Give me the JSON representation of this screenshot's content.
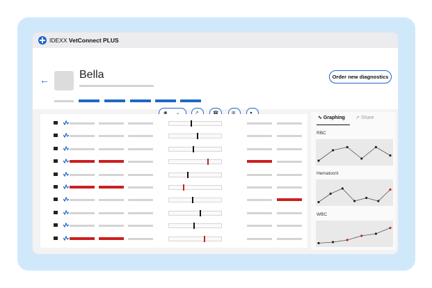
{
  "app": {
    "brand": "IDEXX",
    "product": "VetConnect PLUS"
  },
  "patient": {
    "name": "Bella"
  },
  "header": {
    "order_label": "Order new diagnostics"
  },
  "sidebar": {
    "tabs": [
      {
        "label": "Graphing"
      },
      {
        "label": "Share"
      }
    ]
  },
  "charts_label": [
    "RBC",
    "Hematocrit",
    "WBC"
  ],
  "rows": [
    {
      "flag": [
        false,
        false,
        false
      ],
      "marker": 0.42,
      "marker_red": false,
      "flag2": false
    },
    {
      "flag": [
        false,
        false,
        false
      ],
      "marker": 0.55,
      "marker_red": false,
      "flag2": false
    },
    {
      "flag": [
        false,
        false,
        false
      ],
      "marker": 0.46,
      "marker_red": false,
      "flag2": false
    },
    {
      "flag": [
        true,
        true,
        false
      ],
      "marker": 0.76,
      "marker_red": true,
      "flag2": true
    },
    {
      "flag": [
        false,
        false,
        false
      ],
      "marker": 0.36,
      "marker_red": false,
      "flag2": false
    },
    {
      "flag": [
        true,
        true,
        false
      ],
      "marker": 0.28,
      "marker_red": true,
      "flag2": false
    },
    {
      "flag": [
        false,
        false,
        false
      ],
      "marker": 0.45,
      "marker_red": false,
      "flag2": true
    },
    {
      "flag": [
        false,
        false,
        false
      ],
      "marker": 0.6,
      "marker_red": false,
      "flag2": false
    },
    {
      "flag": [
        false,
        false,
        false
      ],
      "marker": 0.48,
      "marker_red": false,
      "flag2": false
    },
    {
      "flag": [
        true,
        true,
        false
      ],
      "marker": 0.68,
      "marker_red": true,
      "flag2": false
    }
  ],
  "chart_data": [
    {
      "type": "line",
      "title": "RBC",
      "x": [
        1,
        2,
        3,
        4,
        5,
        6
      ],
      "y": [
        0.1,
        0.6,
        0.75,
        0.2,
        0.75,
        0.35
      ],
      "point_colors": [
        "#222",
        "#222",
        "#222",
        "#222",
        "#222",
        "#222"
      ]
    },
    {
      "type": "line",
      "title": "Hematocrit",
      "x": [
        1,
        2,
        3,
        4,
        5,
        6,
        7
      ],
      "y": [
        0.05,
        0.45,
        0.7,
        0.1,
        0.25,
        0.1,
        0.65
      ],
      "point_colors": [
        "#222",
        "#222",
        "#222",
        "#222",
        "#222",
        "#222",
        "#cc1f1f"
      ]
    },
    {
      "type": "line",
      "title": "WBC",
      "x": [
        1,
        2,
        3,
        4,
        5,
        6
      ],
      "y": [
        0.05,
        0.1,
        0.2,
        0.4,
        0.5,
        0.78
      ],
      "point_colors": [
        "#222",
        "#222",
        "#cc1f1f",
        "#cc1f1f",
        "#222",
        "#cc1f1f"
      ]
    }
  ]
}
